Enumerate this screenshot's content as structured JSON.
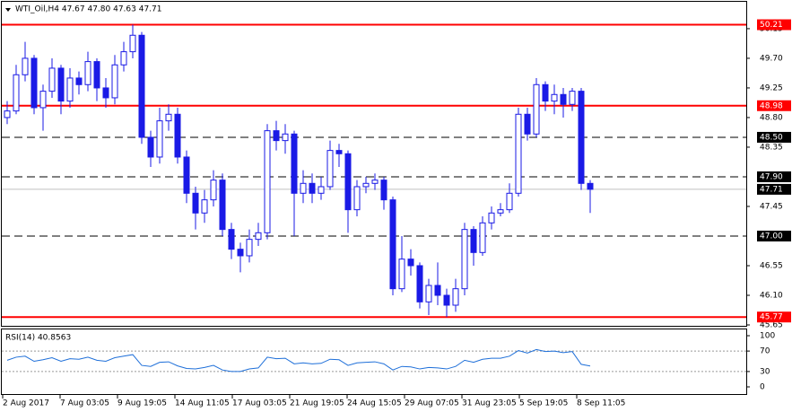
{
  "chart_data": {
    "type": "candlestick",
    "title": "WTI_Oil,H4  47.67 47.80 47.63 47.71",
    "color": "#1a1ae6",
    "open": [
      48.8,
      48.9,
      49.45,
      49.7,
      48.95,
      49.2,
      49.55,
      49.05,
      49.4,
      49.3,
      49.65,
      49.25,
      49.1,
      49.6,
      49.8,
      50.05,
      48.5,
      48.2,
      48.75,
      48.85,
      48.2,
      47.65,
      47.35,
      47.55,
      47.85,
      47.1,
      46.8,
      46.7,
      46.95,
      47.05,
      48.6,
      48.45,
      48.55,
      47.65,
      47.8,
      47.65,
      47.75,
      48.3,
      48.25,
      47.4,
      47.75,
      47.8,
      47.85,
      47.55,
      46.2,
      46.65,
      46.55,
      46.0,
      46.25,
      46.1,
      45.95,
      46.2,
      47.1,
      46.75,
      47.2,
      47.35,
      47.4,
      47.65,
      48.85,
      48.55,
      49.3,
      49.05,
      49.15,
      49.0,
      49.2,
      47.8
    ],
    "high": [
      49.05,
      49.6,
      49.95,
      49.75,
      49.3,
      49.7,
      49.6,
      49.55,
      49.5,
      49.8,
      49.7,
      49.4,
      49.75,
      49.95,
      50.21,
      50.1,
      48.6,
      48.95,
      49.0,
      48.95,
      48.3,
      47.75,
      47.7,
      48.0,
      47.95,
      47.2,
      46.9,
      47.1,
      47.2,
      48.7,
      48.75,
      48.7,
      48.6,
      48.0,
      47.95,
      47.9,
      48.45,
      48.4,
      48.3,
      47.85,
      47.9,
      47.95,
      47.9,
      47.6,
      47.0,
      46.8,
      46.6,
      46.35,
      46.6,
      46.2,
      46.35,
      47.2,
      47.15,
      47.3,
      47.45,
      47.5,
      47.8,
      48.95,
      48.95,
      49.4,
      49.35,
      49.3,
      49.25,
      49.25,
      49.25,
      47.85
    ],
    "low": [
      48.7,
      48.85,
      49.35,
      48.85,
      48.6,
      49.1,
      48.85,
      48.95,
      49.15,
      49.2,
      49.05,
      48.95,
      49.0,
      49.5,
      49.7,
      48.4,
      48.05,
      48.1,
      48.6,
      48.1,
      47.5,
      47.1,
      47.2,
      47.45,
      47.0,
      46.65,
      46.45,
      46.6,
      46.85,
      46.95,
      48.3,
      48.25,
      47.0,
      47.5,
      47.5,
      47.55,
      47.7,
      48.05,
      47.05,
      47.3,
      47.65,
      47.7,
      47.4,
      46.1,
      46.15,
      46.4,
      45.9,
      45.8,
      45.95,
      45.77,
      45.85,
      46.1,
      46.55,
      46.7,
      47.1,
      47.3,
      47.35,
      47.6,
      48.45,
      48.5,
      48.9,
      48.85,
      48.8,
      48.9,
      47.7,
      47.35
    ],
    "close": [
      48.9,
      49.45,
      49.7,
      48.95,
      49.2,
      49.55,
      49.05,
      49.4,
      49.3,
      49.65,
      49.25,
      49.1,
      49.6,
      49.8,
      50.05,
      48.5,
      48.2,
      48.75,
      48.85,
      48.2,
      47.65,
      47.35,
      47.55,
      47.85,
      47.1,
      46.8,
      46.7,
      46.95,
      47.05,
      48.6,
      48.45,
      48.55,
      47.65,
      47.8,
      47.65,
      47.75,
      48.3,
      48.25,
      47.4,
      47.75,
      47.8,
      47.85,
      47.55,
      46.2,
      46.65,
      46.55,
      46.0,
      46.25,
      46.1,
      45.95,
      46.2,
      47.1,
      46.75,
      47.2,
      47.35,
      47.4,
      47.65,
      48.85,
      48.55,
      49.3,
      49.05,
      49.15,
      49.0,
      49.2,
      47.8,
      47.71
    ],
    "ylim": [
      45.65,
      50.34
    ],
    "yticks": [
      50.15,
      {
        "value": 49.7,
        "label": "49.70"
      },
      49.25,
      {
        "value": 48.8,
        "label": "48.80"
      },
      48.35,
      47.45,
      46.55,
      {
        "value": 46.1,
        "label": "46.10"
      },
      45.65
    ],
    "levels": [
      {
        "value": 50.21,
        "style": "solid",
        "color": "#ff0000"
      },
      {
        "value": 48.98,
        "style": "solid",
        "color": "#ff0000"
      },
      {
        "value": 48.5,
        "label": "48.50",
        "style": "dashed",
        "color": "#000000"
      },
      {
        "value": 47.9,
        "label": "47.90",
        "style": "dashed",
        "color": "#000000"
      },
      {
        "value": 47.71,
        "style": "price",
        "color": "#000000"
      },
      {
        "value": 47,
        "label": "47.00",
        "style": "dashed",
        "color": "#000000"
      },
      {
        "value": 45.77,
        "style": "solid",
        "color": "#ff0000"
      }
    ],
    "xtick_labels": [
      "2 Aug 2017",
      "7 Aug 03:05",
      "9 Aug 19:05",
      "14 Aug 11:05",
      "17 Aug 03:05",
      "21 Aug 19:05",
      "24 Aug 15:05",
      "29 Aug 07:05",
      "31 Aug 23:05",
      "5 Sep 19:05",
      "8 Sep 11:05"
    ],
    "rsi": {
      "title": "RSI(14) 40.8563",
      "color": "#1e6fd9",
      "values": [
        52,
        58,
        60,
        50,
        53,
        57,
        50,
        55,
        54,
        58,
        52,
        50,
        57,
        60,
        63,
        42,
        40,
        48,
        49,
        41,
        36,
        35,
        38,
        42,
        33,
        30,
        30,
        35,
        37,
        58,
        55,
        56,
        45,
        47,
        45,
        46,
        54,
        53,
        42,
        47,
        48,
        49,
        45,
        33,
        40,
        39,
        35,
        38,
        37,
        35,
        40,
        52,
        48,
        54,
        56,
        56,
        60,
        71,
        66,
        73,
        69,
        70,
        67,
        69,
        44,
        40.86
      ],
      "ylim": [
        0,
        100
      ],
      "yticks": [
        100,
        70,
        30,
        0
      ],
      "levels": [
        70,
        30
      ]
    }
  }
}
